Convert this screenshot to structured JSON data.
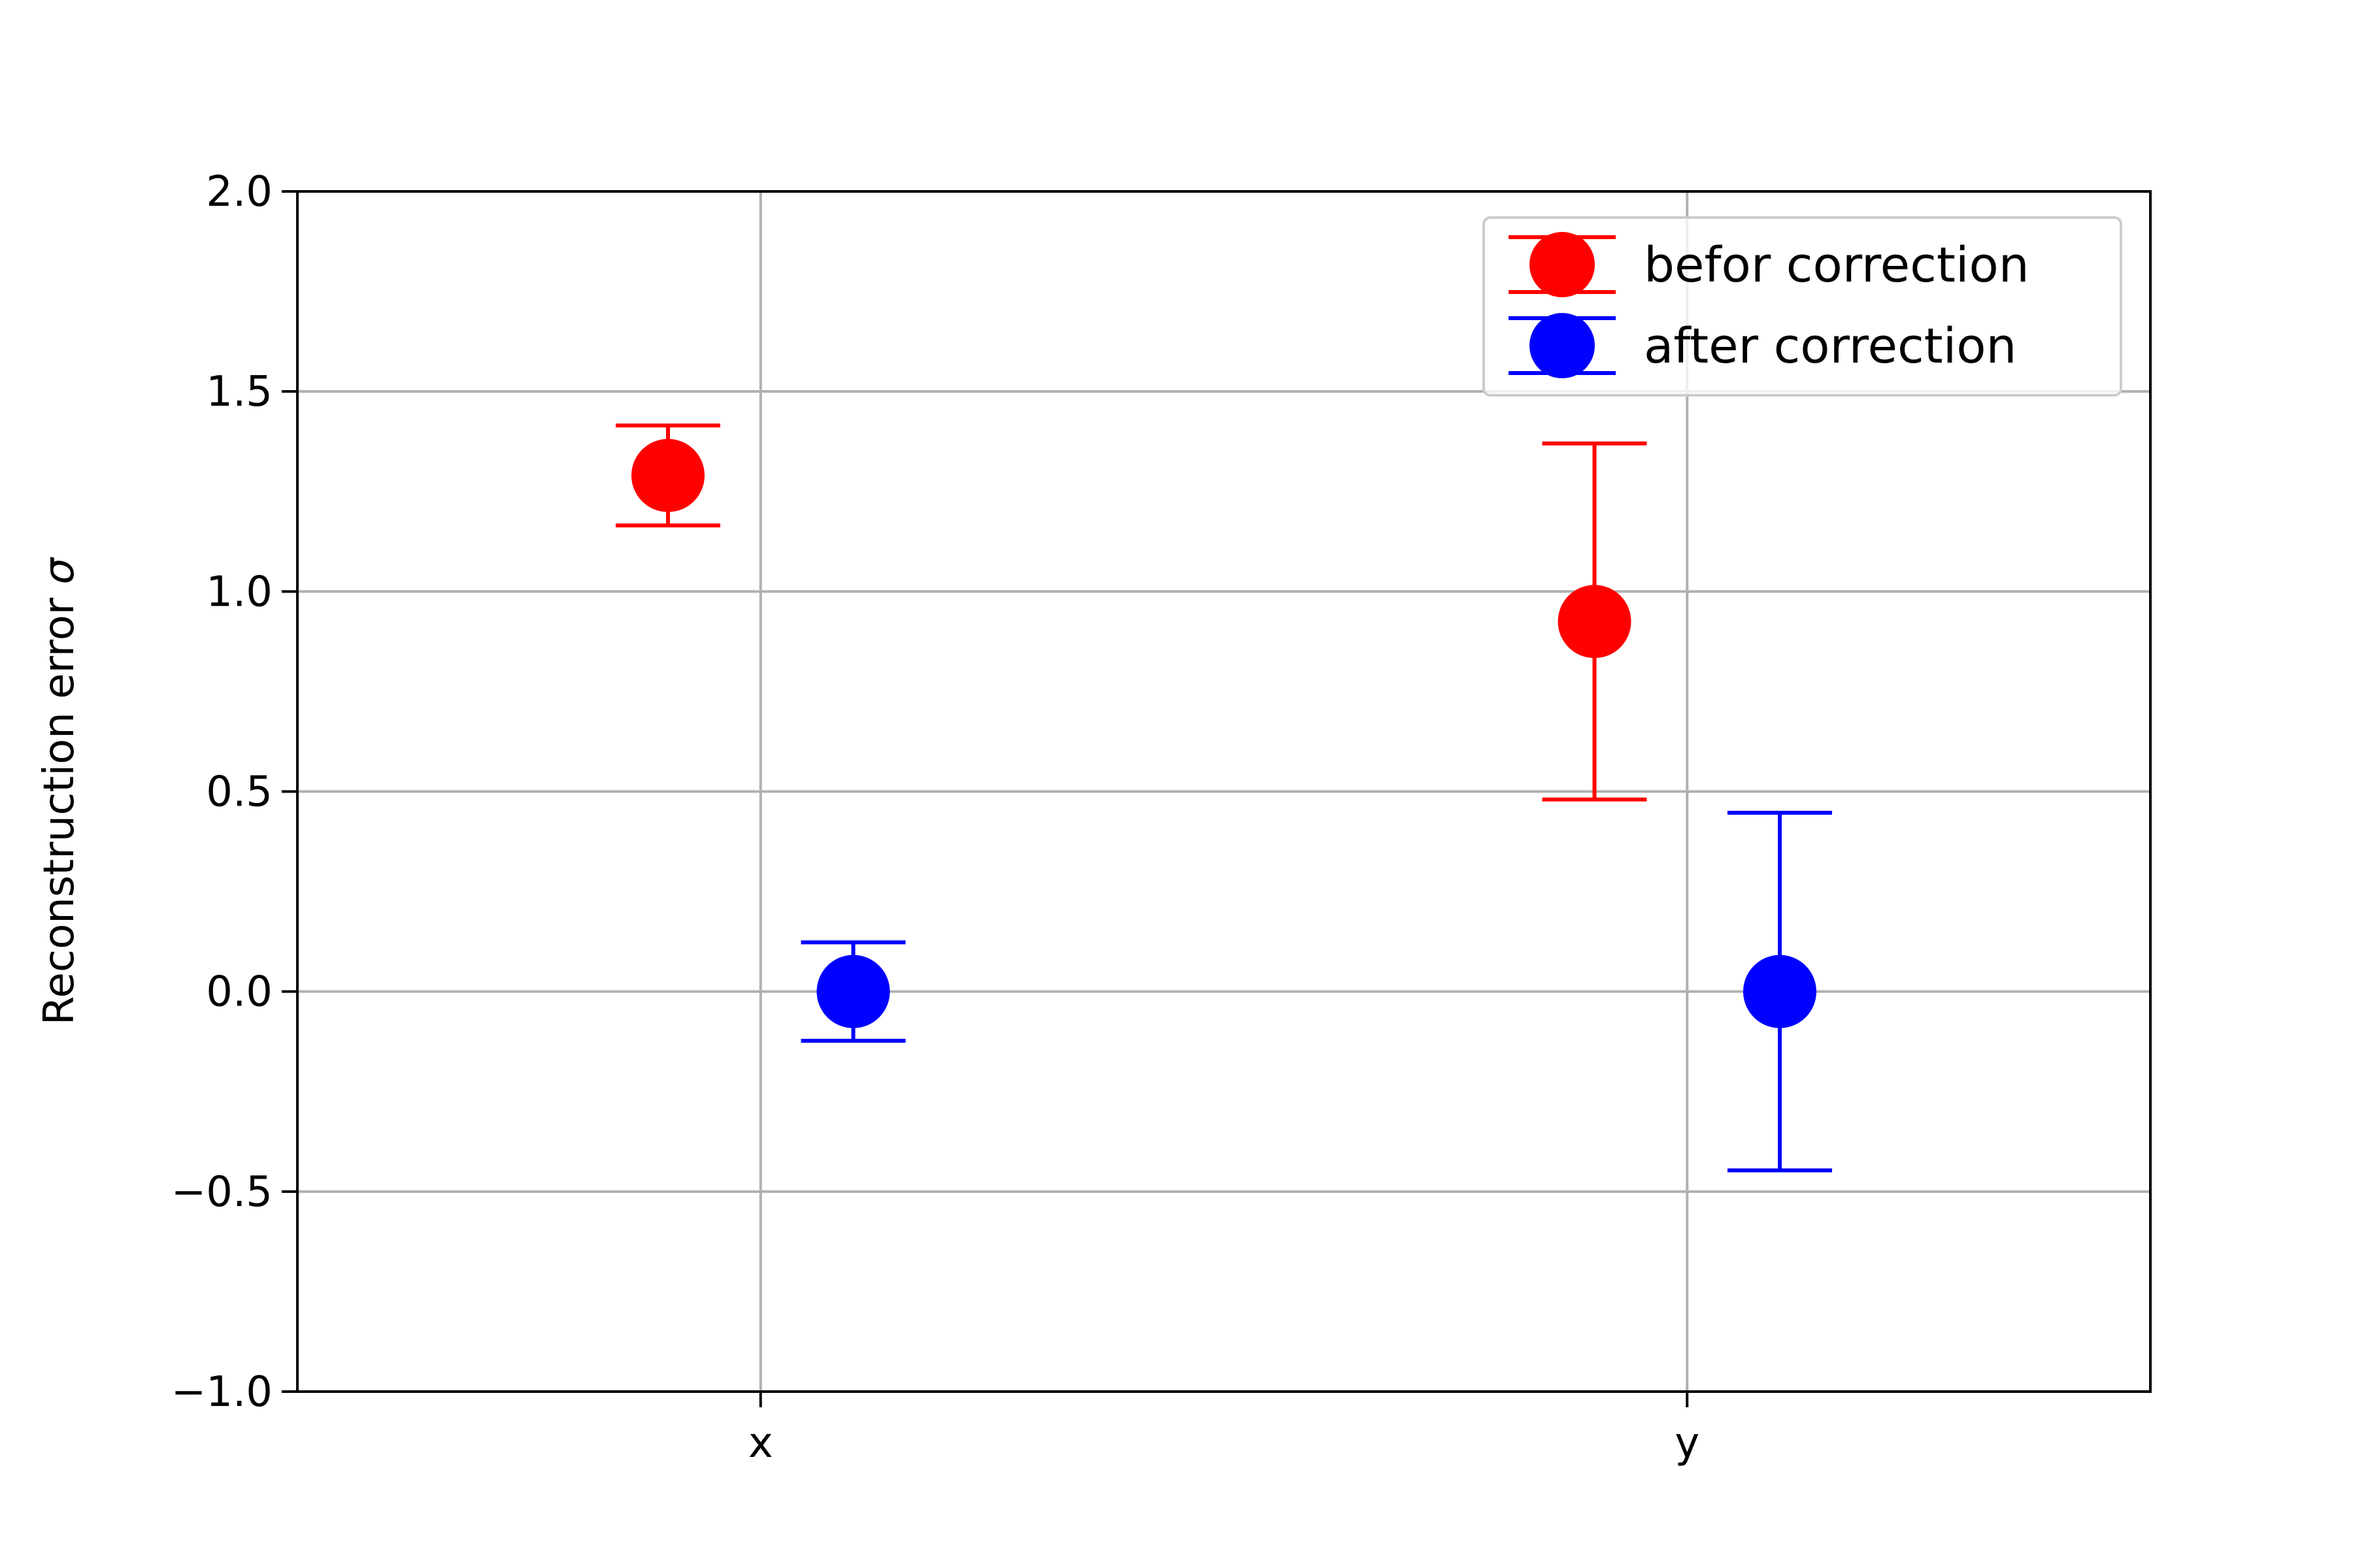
{
  "chart_data": {
    "type": "scatter",
    "categories": [
      "x",
      "y"
    ],
    "xlim": [
      -0.5,
      1.5
    ],
    "ylim": [
      -1.0,
      2.0
    ],
    "yticks": [
      -1.0,
      -0.5,
      0.0,
      0.5,
      1.0,
      1.5,
      2.0
    ],
    "ytick_labels": [
      "−1.0",
      "−0.5",
      "0.0",
      "0.5",
      "1.0",
      "1.5",
      "2.0"
    ],
    "ylabel_text": "Reconstruction error ",
    "ylabel_symbol": "σ",
    "xlabel": "",
    "title": "",
    "grid": true,
    "legend_position": "top-right",
    "series": [
      {
        "name": "befor correction",
        "color": "#ff0000",
        "offset": -0.1,
        "values": [
          1.29,
          0.925
        ],
        "errors": [
          0.125,
          0.445
        ]
      },
      {
        "name": "after correction",
        "color": "#0000ff",
        "offset": 0.1,
        "values": [
          0.0,
          0.0
        ],
        "errors": [
          0.123,
          0.447
        ]
      }
    ]
  }
}
